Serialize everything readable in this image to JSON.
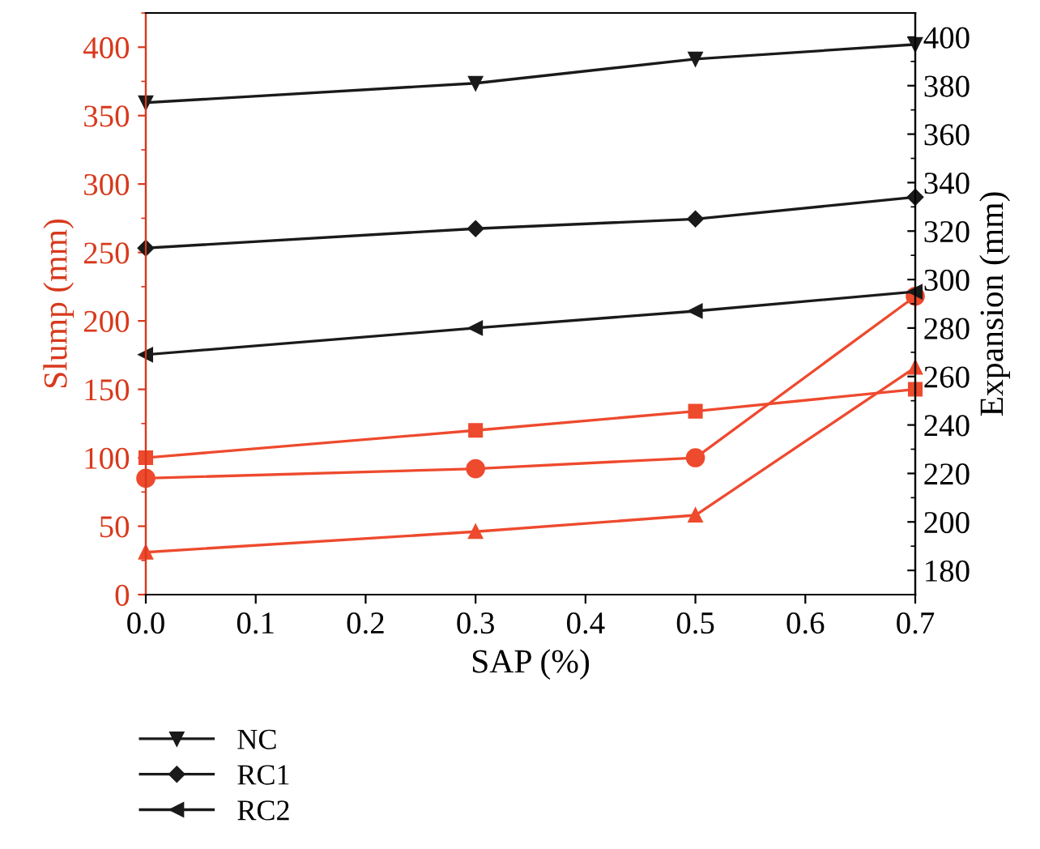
{
  "chart_data": {
    "type": "line",
    "xlabel": "SAP (%)",
    "ylabel": "Slump (mm)",
    "y2label": "Expansion (mm)",
    "x": [
      0,
      0.3,
      0.5,
      0.7
    ],
    "xlim": [
      0,
      0.7
    ],
    "xticks": [
      {
        "value": 0,
        "label": "0.0"
      },
      0.1,
      0.2,
      0.3,
      0.4,
      0.5,
      0.6,
      0.7
    ],
    "ylim": [
      0,
      425
    ],
    "yticks": [
      0,
      50,
      100,
      150,
      200,
      250,
      300,
      350,
      400
    ],
    "y2lim": [
      170,
      410
    ],
    "y2ticks": [
      180,
      200,
      220,
      240,
      260,
      280,
      300,
      320,
      340,
      360,
      380,
      400
    ],
    "grid": false,
    "legend": "bottom left",
    "series": [
      {
        "name": "NC",
        "color": "#1a1a1a",
        "axis": "y2",
        "marker": "triangle_down",
        "values": [
          373,
          381,
          391,
          397
        ]
      },
      {
        "name": "RC1",
        "color": "#1a1a1a",
        "axis": "y2",
        "marker": "diamond",
        "values": [
          313,
          321,
          325,
          334
        ]
      },
      {
        "name": "RC2",
        "color": "#1a1a1a",
        "axis": "y2",
        "marker": "triangle_left",
        "values": [
          269,
          280,
          287,
          295
        ]
      },
      {
        "color": "#ee4a2e",
        "axis": "y",
        "marker": "square",
        "values": [
          100,
          120,
          134,
          150
        ]
      },
      {
        "color": "#ee4a2e",
        "axis": "y",
        "marker": "circle",
        "values": [
          85,
          92,
          100,
          218
        ]
      },
      {
        "color": "#ee4a2e",
        "axis": "y",
        "marker": "triangle",
        "values": [
          31,
          46,
          58,
          166
        ]
      }
    ]
  }
}
